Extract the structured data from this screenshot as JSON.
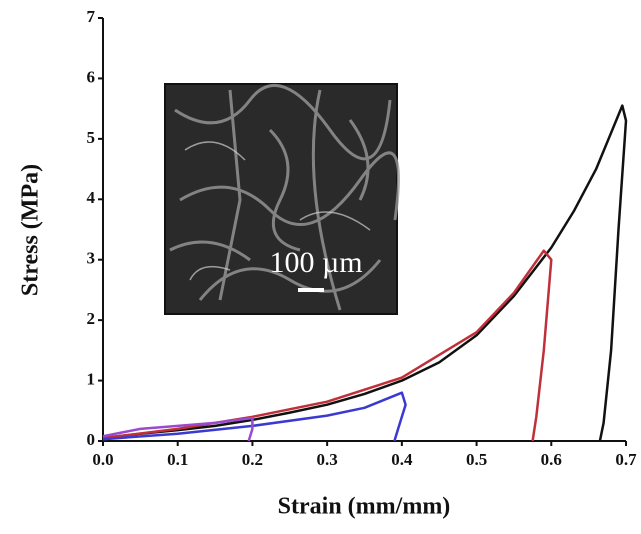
{
  "chart_data": {
    "type": "line",
    "x_label": "Strain (mm/mm)",
    "y_label": "Stress (MPa)",
    "inset_label": "100 µm",
    "xlim": [
      0,
      0.7
    ],
    "xticks": [
      {
        "value": 0,
        "label": "0.0"
      },
      0.1,
      0.2,
      0.3,
      0.4,
      0.5,
      0.6,
      0.7
    ],
    "ylim": [
      0,
      7
    ],
    "yticks": [
      0,
      1,
      2,
      3,
      4,
      5,
      6,
      7
    ],
    "series": [
      {
        "color": "#111111",
        "x": [
          0,
          0.05,
          0.1,
          0.15,
          0.2,
          0.25,
          0.3,
          0.35,
          0.4,
          0.45,
          0.5,
          0.55,
          0.6,
          0.63,
          0.66,
          0.68,
          0.695,
          0.7,
          0.69,
          0.68,
          0.67,
          0.665
        ],
        "values": [
          0.05,
          0.12,
          0.18,
          0.25,
          0.35,
          0.47,
          0.6,
          0.78,
          1.0,
          1.3,
          1.75,
          2.4,
          3.2,
          3.8,
          4.5,
          5.1,
          5.55,
          5.3,
          3.5,
          1.5,
          0.3,
          0
        ]
      },
      {
        "color": "#c0303a",
        "x": [
          0,
          0.1,
          0.2,
          0.3,
          0.4,
          0.5,
          0.55,
          0.59,
          0.6,
          0.59,
          0.58,
          0.575
        ],
        "values": [
          0.05,
          0.2,
          0.4,
          0.65,
          1.05,
          1.8,
          2.45,
          3.15,
          3.0,
          1.5,
          0.4,
          0
        ]
      },
      {
        "color": "#3a3ad0",
        "x": [
          0,
          0.1,
          0.2,
          0.3,
          0.35,
          0.4,
          0.405,
          0.395,
          0.39
        ],
        "values": [
          0.03,
          0.12,
          0.25,
          0.42,
          0.55,
          0.8,
          0.6,
          0.2,
          0
        ]
      },
      {
        "color": "#9a4ad0",
        "x": [
          0,
          0.05,
          0.1,
          0.15,
          0.2,
          0.2,
          0.195
        ],
        "values": [
          0.08,
          0.2,
          0.25,
          0.3,
          0.38,
          0.2,
          0
        ]
      }
    ]
  }
}
